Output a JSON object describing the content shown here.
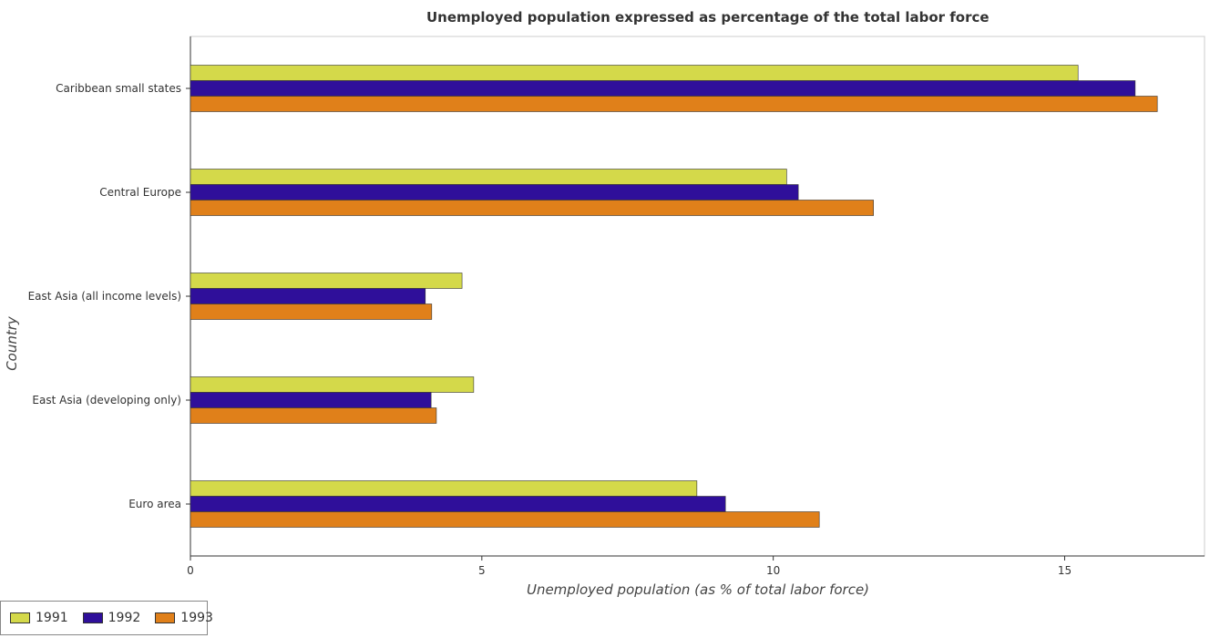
{
  "chart_data": {
    "type": "bar",
    "orientation": "horizontal",
    "title": "Unemployed population expressed as percentage of the total labor force",
    "xlabel": "Unemployed population (as % of total labor force)",
    "ylabel": "Country",
    "xlim": [
      0,
      17.4
    ],
    "xticks": [
      0,
      5,
      10,
      15
    ],
    "grid": false,
    "legend_position": "bottom-left",
    "categories": [
      "Caribbean small states",
      "Central Europe",
      "East Asia (all income levels)",
      "East Asia (developing only)",
      "Euro area"
    ],
    "series": [
      {
        "name": "1991",
        "color": "#d4d94a",
        "values": [
          15.23,
          10.23,
          4.66,
          4.86,
          8.69
        ]
      },
      {
        "name": "1992",
        "color": "#2f0f9a",
        "values": [
          16.21,
          10.43,
          4.03,
          4.13,
          9.18
        ]
      },
      {
        "name": "1993",
        "color": "#e0801a",
        "values": [
          16.59,
          11.72,
          4.14,
          4.22,
          10.79
        ]
      }
    ]
  }
}
